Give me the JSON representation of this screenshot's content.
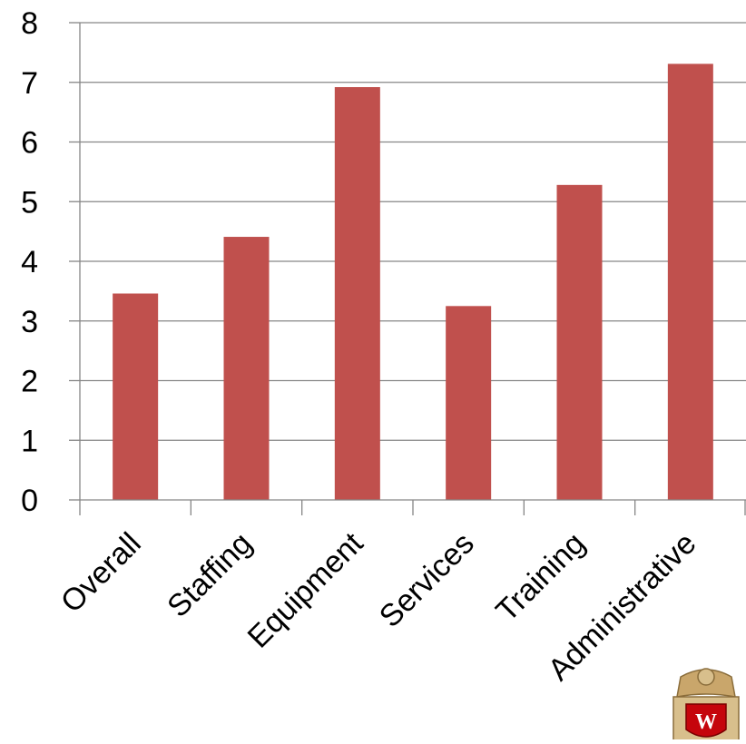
{
  "chart_data": {
    "type": "bar",
    "title": "",
    "xlabel": "",
    "ylabel": "",
    "categories": [
      "Overall",
      "Staffing",
      "Equipment",
      "Services",
      "Training",
      "Administrative"
    ],
    "values": [
      3.46,
      4.41,
      6.92,
      3.25,
      5.28,
      7.31
    ],
    "ylim": [
      0,
      8
    ],
    "yticks": [
      "0",
      "1",
      "2",
      "3",
      "4",
      "5",
      "6",
      "7",
      "8"
    ],
    "grid": true,
    "legend": "none",
    "colors": {
      "bar": "#c0504d",
      "grid": "#868686",
      "axis": "#868686"
    }
  },
  "logo": {
    "name": "university-crest-logo",
    "letter": "W"
  }
}
